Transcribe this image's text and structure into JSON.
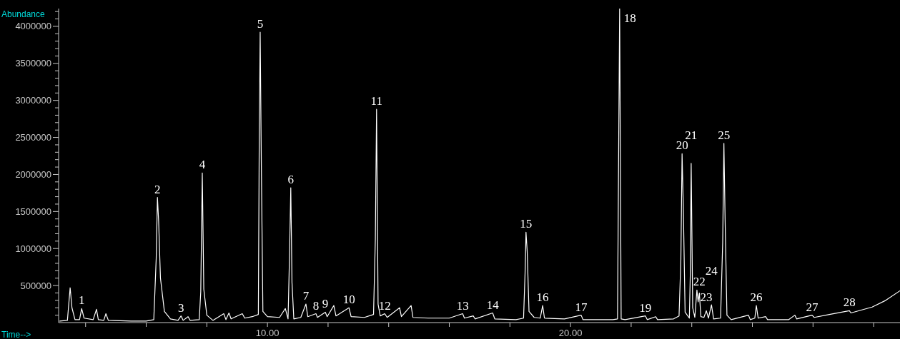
{
  "chart_data": {
    "type": "line",
    "xlabel": "Time-->",
    "ylabel": "Abundance",
    "xlim": [
      3.11,
      30.87
    ],
    "ylim": [
      0,
      4240000
    ],
    "xticks": [
      {
        "value": 4,
        "label": null
      },
      {
        "value": 6,
        "label": null
      },
      {
        "value": 8,
        "label": null
      },
      {
        "value": 10,
        "label": "10.00"
      },
      {
        "value": 12,
        "label": null
      },
      {
        "value": 14,
        "label": null
      },
      {
        "value": 16,
        "label": null
      },
      {
        "value": 18,
        "label": null
      },
      {
        "value": 20,
        "label": "20.00"
      },
      {
        "value": 22,
        "label": null
      },
      {
        "value": 24,
        "label": null
      },
      {
        "value": 26,
        "label": null
      },
      {
        "value": 28,
        "label": null
      },
      {
        "value": 30,
        "label": null
      }
    ],
    "yticks": [
      {
        "value": 100000,
        "label": null
      },
      {
        "value": 200000,
        "label": null
      },
      {
        "value": 300000,
        "label": null
      },
      {
        "value": 400000,
        "label": null
      },
      500000,
      {
        "value": 600000,
        "label": null
      },
      {
        "value": 700000,
        "label": null
      },
      {
        "value": 800000,
        "label": null
      },
      {
        "value": 900000,
        "label": null
      },
      1000000,
      {
        "value": 1100000,
        "label": null
      },
      {
        "value": 1200000,
        "label": null
      },
      {
        "value": 1300000,
        "label": null
      },
      {
        "value": 1400000,
        "label": null
      },
      1500000,
      {
        "value": 1600000,
        "label": null
      },
      {
        "value": 1700000,
        "label": null
      },
      {
        "value": 1800000,
        "label": null
      },
      {
        "value": 1900000,
        "label": null
      },
      2000000,
      {
        "value": 2100000,
        "label": null
      },
      {
        "value": 2200000,
        "label": null
      },
      {
        "value": 2300000,
        "label": null
      },
      {
        "value": 2400000,
        "label": null
      },
      2500000,
      {
        "value": 2600000,
        "label": null
      },
      {
        "value": 2700000,
        "label": null
      },
      {
        "value": 2800000,
        "label": null
      },
      {
        "value": 2900000,
        "label": null
      },
      3000000,
      {
        "value": 3100000,
        "label": null
      },
      {
        "value": 3200000,
        "label": null
      },
      {
        "value": 3300000,
        "label": null
      },
      {
        "value": 3400000,
        "label": null
      },
      3500000,
      {
        "value": 3600000,
        "label": null
      },
      {
        "value": 3700000,
        "label": null
      },
      {
        "value": 3800000,
        "label": null
      },
      {
        "value": 3900000,
        "label": null
      },
      4000000,
      {
        "value": 4100000,
        "label": null
      },
      {
        "value": 4200000,
        "label": null
      }
    ],
    "series": [
      {
        "color": "#ffffff",
        "x": [
          3.15,
          3.4,
          3.49,
          3.55,
          3.65,
          3.8,
          3.87,
          3.95,
          4.25,
          4.36,
          4.42,
          4.6,
          4.67,
          4.75,
          5.5,
          6.0,
          6.25,
          6.33,
          6.37,
          6.41,
          6.47,
          6.6,
          6.8,
          7.05,
          7.15,
          7.22,
          7.38,
          7.45,
          7.75,
          7.8,
          7.85,
          7.9,
          8.0,
          8.2,
          8.56,
          8.63,
          8.73,
          8.8,
          9.17,
          9.25,
          9.5,
          9.7,
          9.73,
          9.76,
          9.8,
          9.85,
          10.0,
          10.4,
          10.59,
          10.68,
          10.73,
          10.77,
          10.81,
          10.87,
          11.1,
          11.27,
          11.33,
          11.6,
          11.65,
          11.91,
          11.97,
          12.19,
          12.26,
          12.69,
          12.76,
          13.2,
          13.5,
          13.56,
          13.6,
          13.65,
          13.72,
          13.87,
          13.95,
          14.36,
          14.42,
          14.74,
          14.8,
          15.3,
          16.0,
          16.44,
          16.5,
          16.79,
          16.85,
          17.43,
          17.5,
          18.2,
          18.45,
          18.5,
          18.53,
          18.57,
          18.63,
          18.8,
          19.0,
          19.08,
          19.14,
          19.8,
          20.35,
          20.41,
          21.4,
          21.55,
          21.62,
          21.67,
          21.8,
          22.47,
          22.53,
          22.81,
          22.87,
          23.4,
          23.58,
          23.64,
          23.68,
          23.72,
          23.78,
          23.92,
          23.95,
          23.98,
          24.03,
          24.1,
          24.17,
          24.21,
          24.25,
          24.3,
          24.4,
          24.48,
          24.55,
          24.65,
          24.72,
          24.95,
          25.02,
          25.06,
          25.1,
          25.16,
          25.3,
          25.87,
          25.93,
          26.08,
          26.13,
          26.19,
          26.44,
          26.5,
          27.2,
          27.4,
          27.46,
          27.97,
          28.04,
          28.54,
          29.2,
          29.25,
          29.95,
          30.4,
          30.87
        ],
        "values": [
          20000,
          30000,
          470000,
          200000,
          40000,
          40000,
          190000,
          60000,
          40000,
          180000,
          40000,
          30000,
          120000,
          30000,
          20000,
          20000,
          40000,
          870000,
          1690000,
          1370000,
          600000,
          150000,
          50000,
          30000,
          90000,
          30000,
          80000,
          30000,
          40000,
          420000,
          2020000,
          450000,
          100000,
          30000,
          120000,
          40000,
          130000,
          50000,
          120000,
          60000,
          80000,
          110000,
          2500000,
          3920000,
          2060000,
          150000,
          80000,
          70000,
          190000,
          50000,
          940000,
          1820000,
          540000,
          50000,
          70000,
          250000,
          80000,
          120000,
          70000,
          140000,
          80000,
          230000,
          90000,
          200000,
          80000,
          70000,
          110000,
          1130000,
          2880000,
          250000,
          90000,
          120000,
          70000,
          200000,
          80000,
          230000,
          70000,
          60000,
          60000,
          120000,
          60000,
          90000,
          50000,
          130000,
          50000,
          40000,
          60000,
          670000,
          1220000,
          960000,
          150000,
          70000,
          60000,
          230000,
          60000,
          50000,
          100000,
          40000,
          40000,
          50000,
          4240000,
          50000,
          40000,
          90000,
          40000,
          80000,
          40000,
          50000,
          90000,
          850000,
          2280000,
          1580000,
          140000,
          60000,
          630000,
          2150000,
          200000,
          70000,
          440000,
          280000,
          400000,
          80000,
          70000,
          160000,
          60000,
          240000,
          50000,
          60000,
          1080000,
          2420000,
          1390000,
          100000,
          40000,
          100000,
          40000,
          60000,
          230000,
          60000,
          80000,
          40000,
          40000,
          100000,
          50000,
          100000,
          70000,
          110000,
          160000,
          130000,
          210000,
          300000,
          430000
        ]
      }
    ],
    "annotations": [
      {
        "text": "1",
        "x": 3.87,
        "y": 190000
      },
      {
        "text": "2",
        "x": 6.37,
        "y": 1690000
      },
      {
        "text": "3",
        "x": 7.15,
        "y": 90000
      },
      {
        "text": "4",
        "x": 7.85,
        "y": 2020000
      },
      {
        "text": "5",
        "x": 9.76,
        "y": 3920000
      },
      {
        "text": "6",
        "x": 10.77,
        "y": 1820000
      },
      {
        "text": "7",
        "x": 11.27,
        "y": 250000
      },
      {
        "text": "8",
        "x": 11.6,
        "y": 120000
      },
      {
        "text": "9",
        "x": 11.91,
        "y": 140000
      },
      {
        "text": "10",
        "x": 12.69,
        "y": 200000
      },
      {
        "text": "11",
        "x": 13.6,
        "y": 2880000
      },
      {
        "text": "12",
        "x": 13.87,
        "y": 120000
      },
      {
        "text": "13",
        "x": 16.44,
        "y": 120000
      },
      {
        "text": "14",
        "x": 17.43,
        "y": 130000
      },
      {
        "text": "15",
        "x": 18.53,
        "y": 1220000
      },
      {
        "text": "16",
        "x": 19.08,
        "y": 230000
      },
      {
        "text": "17",
        "x": 20.35,
        "y": 100000
      },
      {
        "text": "18",
        "x": 21.62,
        "y": 4240000
      },
      {
        "text": "19",
        "x": 22.47,
        "y": 90000
      },
      {
        "text": "20",
        "x": 23.68,
        "y": 2280000
      },
      {
        "text": "21",
        "x": 23.98,
        "y": 2150000
      },
      {
        "text": "22",
        "x": 24.17,
        "y": 440000
      },
      {
        "text": "23",
        "x": 24.48,
        "y": 160000
      },
      {
        "text": "24",
        "x": 24.65,
        "y": 240000
      },
      {
        "text": "25",
        "x": 25.06,
        "y": 2420000
      },
      {
        "text": "26",
        "x": 26.13,
        "y": 230000
      },
      {
        "text": "27",
        "x": 27.97,
        "y": 100000
      },
      {
        "text": "28",
        "x": 29.2,
        "y": 160000
      }
    ]
  }
}
